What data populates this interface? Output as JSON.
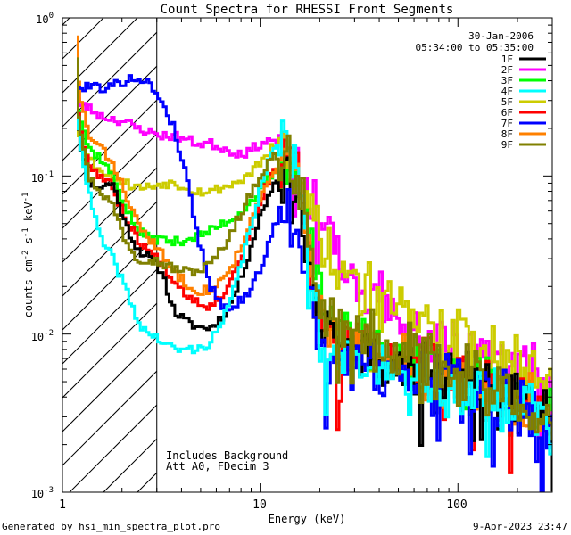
{
  "chart_data": {
    "type": "line",
    "title": "Count Spectra for RHESSI Front Segments",
    "xlabel": "Energy (keV)",
    "ylabel": {
      "base": "counts cm",
      "e1": "-2",
      "mid1": " s",
      "e2": "-1",
      "mid2": " keV",
      "e3": "-1"
    },
    "xscale": "log",
    "yscale": "log",
    "xlim": [
      1,
      300
    ],
    "ylim": [
      0.001,
      1
    ],
    "xticks": [
      {
        "value": 1,
        "label": "1"
      },
      {
        "value": 10,
        "label": "10"
      },
      {
        "value": 100,
        "label": "100"
      }
    ],
    "yticks": [
      {
        "value": 1,
        "mant": "10",
        "exp": "0"
      },
      {
        "value": 0.1,
        "mant": "10",
        "exp": "-1"
      },
      {
        "value": 0.01,
        "mant": "10",
        "exp": "-2"
      },
      {
        "value": 0.001,
        "mant": "10",
        "exp": "-3"
      }
    ],
    "date": "30-Jan-2006",
    "time_range": "05:34:00 to 05:35:00",
    "attenuator_boundary_kev": 3,
    "annotations": [
      "Includes Background",
      "Att A0, FDecim 3"
    ],
    "series": [
      {
        "name": "1F",
        "color": "#000000",
        "seed": 11,
        "values": [
          0.55,
          0.22,
          0.09,
          0.085,
          0.09,
          0.05,
          0.035,
          0.03,
          0.025,
          0.014,
          0.012,
          0.011,
          0.011,
          0.013,
          0.018,
          0.03,
          0.055,
          0.085,
          0.11,
          0.08,
          0.025,
          0.011,
          0.009,
          0.008,
          0.0075,
          0.007,
          0.0065,
          0.006,
          0.0058,
          0.0056,
          0.0054,
          0.0052,
          0.0049,
          0.0046,
          0.0043,
          0.0041,
          0.0039,
          0.0037,
          0.0035,
          0.0032,
          0.0029
        ]
      },
      {
        "name": "2F",
        "color": "#ff00ff",
        "seed": 23,
        "values": [
          0.5,
          0.3,
          0.27,
          0.24,
          0.23,
          0.22,
          0.2,
          0.19,
          0.18,
          0.18,
          0.17,
          0.16,
          0.16,
          0.15,
          0.14,
          0.14,
          0.16,
          0.17,
          0.15,
          0.12,
          0.08,
          0.05,
          0.035,
          0.028,
          0.022,
          0.018,
          0.016,
          0.014,
          0.013,
          0.012,
          0.011,
          0.01,
          0.0095,
          0.009,
          0.0085,
          0.008,
          0.0075,
          0.0068,
          0.006,
          0.0052,
          0.0045
        ]
      },
      {
        "name": "3F",
        "color": "#00ff00",
        "seed": 37,
        "values": [
          0.6,
          0.3,
          0.15,
          0.13,
          0.1,
          0.065,
          0.045,
          0.04,
          0.04,
          0.038,
          0.04,
          0.042,
          0.045,
          0.05,
          0.055,
          0.065,
          0.08,
          0.1,
          0.12,
          0.1,
          0.04,
          0.018,
          0.012,
          0.01,
          0.009,
          0.0085,
          0.008,
          0.0075,
          0.007,
          0.0065,
          0.006,
          0.0057,
          0.0053,
          0.005,
          0.0046,
          0.0042,
          0.0039,
          0.0036,
          0.0034,
          0.0031,
          0.0029
        ]
      },
      {
        "name": "4F",
        "color": "#00ffff",
        "seed": 41,
        "values": [
          0.42,
          0.25,
          0.08,
          0.04,
          0.03,
          0.02,
          0.012,
          0.01,
          0.009,
          0.008,
          0.008,
          0.008,
          0.009,
          0.012,
          0.02,
          0.04,
          0.08,
          0.14,
          0.19,
          0.12,
          0.03,
          0.009,
          0.007,
          0.0065,
          0.006,
          0.006,
          0.0058,
          0.0056,
          0.0054,
          0.0052,
          0.005,
          0.0048,
          0.0046,
          0.0044,
          0.0041,
          0.0039,
          0.0036,
          0.0034,
          0.0032,
          0.003,
          0.0028
        ]
      },
      {
        "name": "5F",
        "color": "#cccc00",
        "seed": 53,
        "values": [
          0.45,
          0.2,
          0.13,
          0.11,
          0.1,
          0.09,
          0.085,
          0.085,
          0.09,
          0.09,
          0.085,
          0.08,
          0.08,
          0.085,
          0.09,
          0.1,
          0.12,
          0.15,
          0.16,
          0.13,
          0.07,
          0.04,
          0.03,
          0.025,
          0.02,
          0.018,
          0.016,
          0.014,
          0.013,
          0.012,
          0.011,
          0.01,
          0.0095,
          0.009,
          0.0085,
          0.008,
          0.0075,
          0.0068,
          0.006,
          0.0055,
          0.005
        ]
      },
      {
        "name": "6F",
        "color": "#ff0000",
        "seed": 67,
        "values": [
          0.5,
          0.28,
          0.12,
          0.1,
          0.085,
          0.055,
          0.04,
          0.033,
          0.028,
          0.022,
          0.018,
          0.016,
          0.015,
          0.018,
          0.025,
          0.04,
          0.07,
          0.1,
          0.13,
          0.1,
          0.035,
          0.013,
          0.01,
          0.009,
          0.0085,
          0.008,
          0.0075,
          0.007,
          0.0066,
          0.0062,
          0.0058,
          0.0055,
          0.0052,
          0.0049,
          0.0046,
          0.0043,
          0.004,
          0.0037,
          0.0034,
          0.0031,
          0.0029
        ]
      },
      {
        "name": "7F",
        "color": "#0000ff",
        "seed": 79,
        "values": [
          0.3,
          0.35,
          0.38,
          0.36,
          0.37,
          0.4,
          0.42,
          0.38,
          0.3,
          0.2,
          0.1,
          0.04,
          0.02,
          0.015,
          0.015,
          0.018,
          0.025,
          0.045,
          0.06,
          0.045,
          0.02,
          0.009,
          0.007,
          0.0065,
          0.006,
          0.006,
          0.0058,
          0.0056,
          0.0054,
          0.0052,
          0.005,
          0.0048,
          0.0046,
          0.0044,
          0.0042,
          0.004,
          0.0037,
          0.0034,
          0.0032,
          0.003,
          0.0028
        ]
      },
      {
        "name": "8F",
        "color": "#ff8000",
        "seed": 83,
        "values": [
          0.8,
          0.45,
          0.18,
          0.15,
          0.12,
          0.08,
          0.05,
          0.04,
          0.032,
          0.025,
          0.021,
          0.019,
          0.019,
          0.022,
          0.03,
          0.045,
          0.07,
          0.1,
          0.13,
          0.1,
          0.035,
          0.013,
          0.01,
          0.009,
          0.0085,
          0.008,
          0.0075,
          0.007,
          0.0066,
          0.0062,
          0.0058,
          0.0055,
          0.0052,
          0.0049,
          0.0046,
          0.0043,
          0.004,
          0.0037,
          0.0034,
          0.0031,
          0.0029
        ]
      },
      {
        "name": "9F",
        "color": "#808000",
        "seed": 97,
        "values": [
          0.58,
          0.3,
          0.1,
          0.08,
          0.065,
          0.04,
          0.03,
          0.03,
          0.028,
          0.026,
          0.025,
          0.025,
          0.028,
          0.035,
          0.05,
          0.07,
          0.1,
          0.13,
          0.14,
          0.1,
          0.04,
          0.014,
          0.011,
          0.01,
          0.0095,
          0.009,
          0.0085,
          0.008,
          0.0075,
          0.007,
          0.0066,
          0.0062,
          0.0058,
          0.0054,
          0.005,
          0.0046,
          0.0043,
          0.004,
          0.0037,
          0.0034,
          0.0031
        ]
      }
    ]
  },
  "footer": {
    "generated_by": "Generated by hsi_min_spectra_plot.pro",
    "timestamp": "9-Apr-2023 23:47"
  }
}
